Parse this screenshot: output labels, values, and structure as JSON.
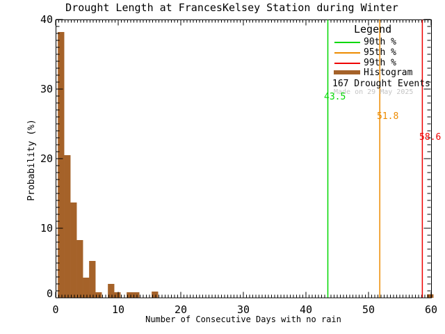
{
  "chart_data": {
    "type": "bar",
    "title": "Drought Length at FrancesKelsey Station during Winter",
    "xlabel": "Number of Consecutive Days with no rain",
    "ylabel": "Probability (%)",
    "xlim": [
      0,
      60
    ],
    "ylim": [
      0,
      40
    ],
    "x_ticks": [
      0,
      10,
      20,
      30,
      40,
      50,
      60
    ],
    "y_ticks": [
      0,
      10,
      20,
      30,
      40
    ],
    "x_minor_step": 0.5,
    "y_minor_step": 1,
    "grid": "off",
    "legend_position": "top-right",
    "bar_color": "#A56229",
    "bins": [
      {
        "day": 1,
        "pct": 38.2
      },
      {
        "day": 2,
        "pct": 20.5
      },
      {
        "day": 3,
        "pct": 13.7
      },
      {
        "day": 4,
        "pct": 8.3
      },
      {
        "day": 5,
        "pct": 2.9
      },
      {
        "day": 6,
        "pct": 5.3
      },
      {
        "day": 7,
        "pct": 0.8
      },
      {
        "day": 8,
        "pct": 0
      },
      {
        "day": 9,
        "pct": 2.0
      },
      {
        "day": 10,
        "pct": 0.8
      },
      {
        "day": 11,
        "pct": 0
      },
      {
        "day": 12,
        "pct": 0.8
      },
      {
        "day": 13,
        "pct": 0.8
      },
      {
        "day": 14,
        "pct": 0
      },
      {
        "day": 15,
        "pct": 0
      },
      {
        "day": 16,
        "pct": 0.9
      }
    ],
    "outlier_bin": {
      "day": 60,
      "pct": 0.5
    },
    "n_events": 167,
    "percentiles": [
      {
        "name": "90th %",
        "value": 43.5,
        "label": "43.5",
        "color": "#00D800"
      },
      {
        "name": "95th %",
        "value": 51.8,
        "label": "51.8",
        "color": "#ED8B00"
      },
      {
        "name": "99th %",
        "value": 58.6,
        "label": "58.6",
        "color": "#EE0000"
      }
    ],
    "legend": {
      "title": "Legend",
      "entries": [
        {
          "label": "90th %"
        },
        {
          "label": "95th %"
        },
        {
          "label": "99th %"
        },
        {
          "label": "Histogram"
        }
      ],
      "events_label": "167 Drought Events"
    },
    "watermark": "Made on 29 May 2025",
    "frame_color": "#000000"
  }
}
